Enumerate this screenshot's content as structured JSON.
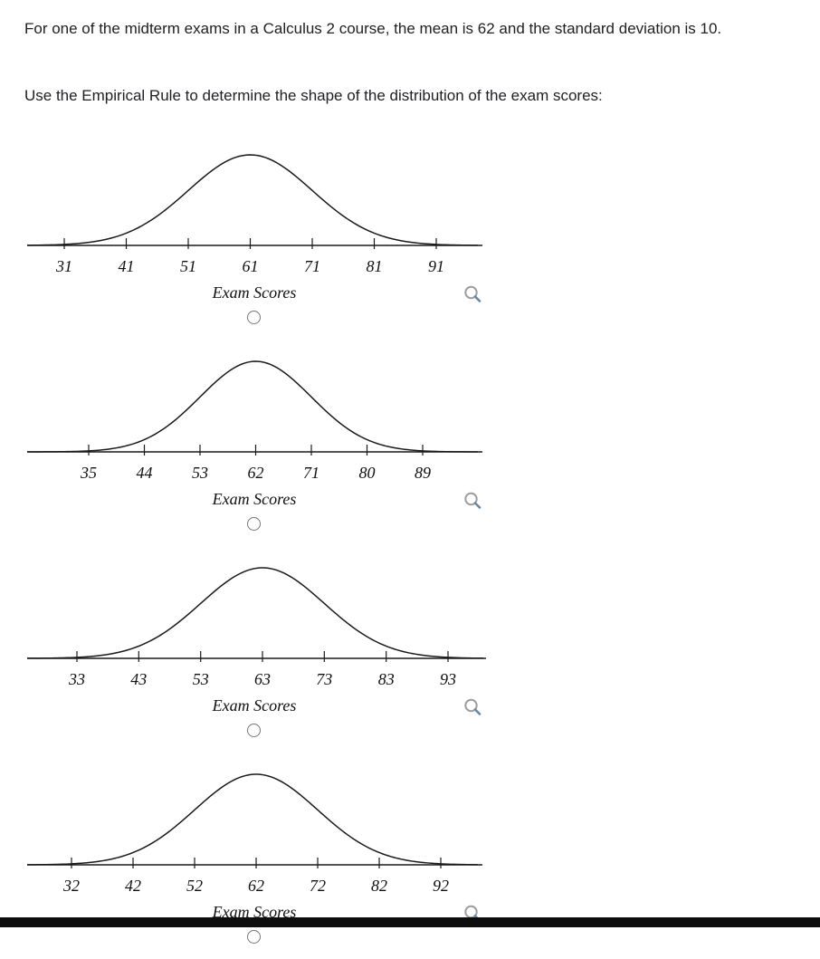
{
  "question": {
    "intro": "For one of the midterm exams in a Calculus 2 course, the mean is 62 and the standard deviation is 10.",
    "prompt": "Use the Empirical Rule to determine the shape of the distribution of the exam scores:"
  },
  "options": [
    {
      "axis_label": "Exam Scores",
      "ticks": [
        "31",
        "41",
        "51",
        "61",
        "71",
        "81",
        "91"
      ]
    },
    {
      "axis_label": "Exam Scores",
      "ticks": [
        "35",
        "44",
        "53",
        "62",
        "71",
        "80",
        "89"
      ]
    },
    {
      "axis_label": "Exam Scores",
      "ticks": [
        "33",
        "43",
        "53",
        "63",
        "73",
        "83",
        "93"
      ]
    },
    {
      "axis_label": "Exam Scores",
      "ticks": [
        "32",
        "42",
        "52",
        "62",
        "72",
        "82",
        "92"
      ]
    }
  ],
  "colors": {
    "text": "#202124",
    "curve": "#1a1a1a",
    "radio_border": "#757575",
    "magnifier_glass": "#9e9e9e",
    "magnifier_handle": "#6b87a5",
    "bottom_bar": "#0d0d0d"
  },
  "chart_data": [
    {
      "type": "line",
      "shape": "normal-distribution-curve",
      "xlabel": "Exam Scores",
      "x_ticks": [
        31,
        41,
        51,
        61,
        71,
        81,
        91
      ],
      "center": 61,
      "tick_step": 10,
      "grid": false
    },
    {
      "type": "line",
      "shape": "normal-distribution-curve",
      "xlabel": "Exam Scores",
      "x_ticks": [
        35,
        44,
        53,
        62,
        71,
        80,
        89
      ],
      "center": 62,
      "tick_step": 9,
      "grid": false
    },
    {
      "type": "line",
      "shape": "normal-distribution-curve",
      "xlabel": "Exam Scores",
      "x_ticks": [
        33,
        43,
        53,
        63,
        73,
        83,
        93
      ],
      "center": 63,
      "tick_step": 10,
      "grid": false
    },
    {
      "type": "line",
      "shape": "normal-distribution-curve",
      "xlabel": "Exam Scores",
      "x_ticks": [
        32,
        42,
        52,
        62,
        72,
        82,
        92
      ],
      "center": 62,
      "tick_step": 10,
      "grid": false
    }
  ]
}
